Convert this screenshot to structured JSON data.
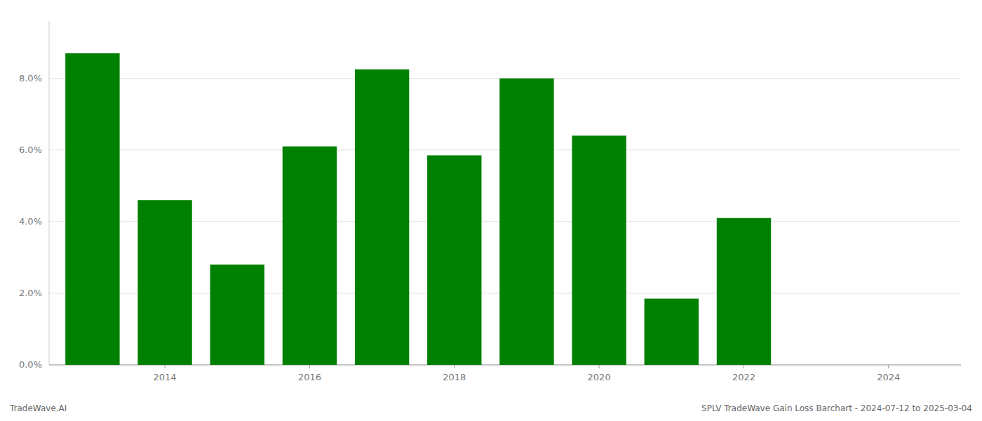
{
  "chart_data": {
    "type": "bar",
    "title": "SPLV TradeWave Gain Loss Barchart - 2024-07-12 to 2025-03-04",
    "annotations": [
      "TradeWave.AI"
    ],
    "x": [
      2013,
      2014,
      2015,
      2016,
      2017,
      2018,
      2019,
      2020,
      2021,
      2022
    ],
    "values": [
      0.087,
      0.046,
      0.028,
      0.061,
      0.0825,
      0.0585,
      0.08,
      0.064,
      0.0185,
      0.041
    ],
    "color": "#008000",
    "xlim": [
      2012.4,
      2025.0
    ],
    "xticks": [
      2014,
      2016,
      2018,
      2020,
      2022,
      2024
    ],
    "ylim": [
      0,
      0.096
    ],
    "yticks": [
      {
        "value": 0.0,
        "label": "0.0%"
      },
      {
        "value": 0.02,
        "label": "2.0%"
      },
      {
        "value": 0.04,
        "label": "4.0%"
      },
      {
        "value": 0.06,
        "label": "6.0%"
      },
      {
        "value": 0.08,
        "label": "8.0%"
      }
    ],
    "grid": true
  }
}
